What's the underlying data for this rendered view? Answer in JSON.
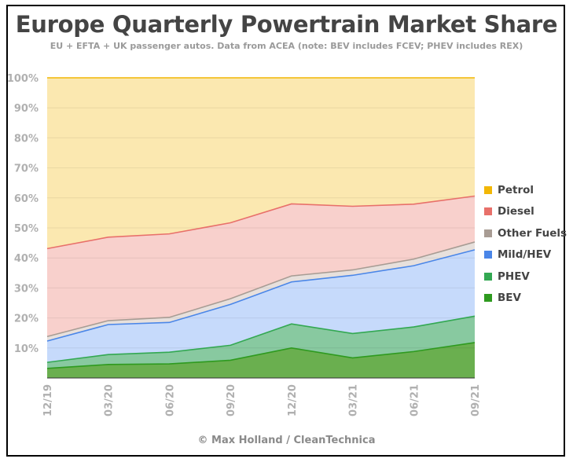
{
  "chart_data": {
    "type": "area",
    "stacked": true,
    "title": "Europe Quarterly Powertrain Market Share",
    "subtitle": "EU + EFTA + UK passenger autos. Data from ACEA (note: BEV includes FCEV; PHEV includes REX)",
    "source": "© Max Holland / CleanTechnica",
    "x": [
      "12/19",
      "03/20",
      "06/20",
      "09/20",
      "12/20",
      "03/21",
      "06/21",
      "09/21"
    ],
    "ylim": [
      0,
      100
    ],
    "yticks": [
      "10%",
      "20%",
      "30%",
      "40%",
      "50%",
      "60%",
      "70%",
      "80%",
      "90%",
      "100%"
    ],
    "grid": true,
    "legend_position": "right",
    "series": [
      {
        "name": "BEV",
        "color": "#2e9a1f",
        "fill": "#6aaf4f",
        "values": [
          3.2,
          4.5,
          4.7,
          5.9,
          10.0,
          6.7,
          8.8,
          11.8
        ]
      },
      {
        "name": "PHEV",
        "color": "#33a852",
        "fill": "#88c9a0",
        "values": [
          2.0,
          3.3,
          3.9,
          5.0,
          8.0,
          8.1,
          8.2,
          8.8
        ]
      },
      {
        "name": "Mild/HEV",
        "color": "#4a86e8",
        "fill": "#c6dafb",
        "values": [
          7.1,
          10.0,
          9.9,
          13.6,
          14.0,
          19.4,
          20.4,
          22.1
        ]
      },
      {
        "name": "Other Fuels",
        "color": "#a89c94",
        "fill": "#e7e0dc",
        "values": [
          1.5,
          1.3,
          1.7,
          1.9,
          2.0,
          1.8,
          2.2,
          2.6
        ]
      },
      {
        "name": "Diesel",
        "color": "#e8706a",
        "fill": "#f8d0cc",
        "values": [
          29.3,
          27.8,
          27.8,
          25.3,
          24.0,
          21.2,
          18.3,
          15.3
        ]
      },
      {
        "name": "Petrol",
        "color": "#f2b705",
        "fill": "#fbe8b0",
        "values": [
          56.9,
          53.1,
          52.0,
          48.3,
          42.0,
          42.8,
          42.1,
          39.4
        ]
      }
    ],
    "legend_order": [
      "Petrol",
      "Diesel",
      "Other Fuels",
      "Mild/HEV",
      "PHEV",
      "BEV"
    ]
  }
}
